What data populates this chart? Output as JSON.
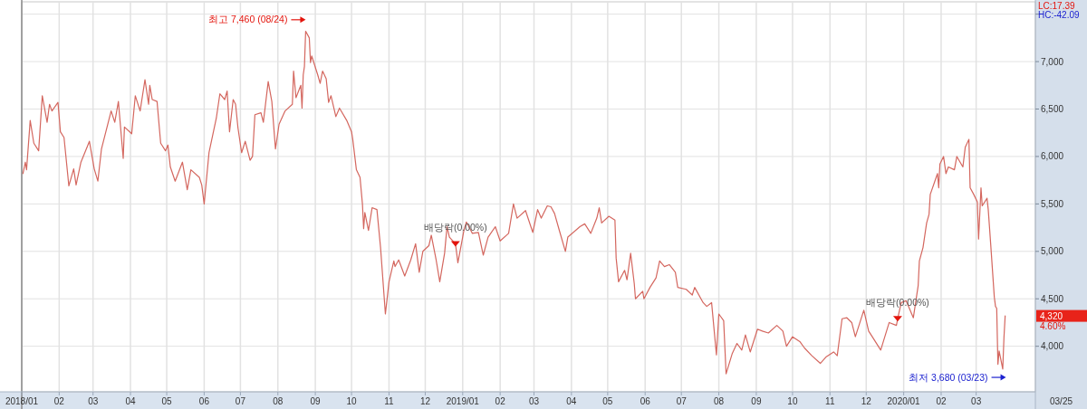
{
  "chart_data": {
    "type": "line",
    "x": [
      "2018-01-02",
      "2018-01-04",
      "2018-01-05",
      "2018-01-08",
      "2018-01-11",
      "2018-01-15",
      "2018-01-18",
      "2018-01-22",
      "2018-01-24",
      "2018-01-26",
      "2018-01-31",
      "2018-02-02",
      "2018-02-05",
      "2018-02-09",
      "2018-02-13",
      "2018-02-15",
      "2018-02-19",
      "2018-02-26",
      "2018-03-02",
      "2018-03-05",
      "2018-03-08",
      "2018-03-14",
      "2018-03-16",
      "2018-03-19",
      "2018-03-22",
      "2018-03-26",
      "2018-03-27",
      "2018-04-02",
      "2018-04-05",
      "2018-04-09",
      "2018-04-13",
      "2018-04-16",
      "2018-04-17",
      "2018-04-19",
      "2018-04-23",
      "2018-04-26",
      "2018-04-30",
      "2018-05-02",
      "2018-05-04",
      "2018-05-08",
      "2018-05-14",
      "2018-05-18",
      "2018-05-21",
      "2018-05-28",
      "2018-05-30",
      "2018-06-01",
      "2018-06-05",
      "2018-06-11",
      "2018-06-14",
      "2018-06-18",
      "2018-06-20",
      "2018-06-22",
      "2018-06-25",
      "2018-06-27",
      "2018-06-29",
      "2018-07-02",
      "2018-07-05",
      "2018-07-09",
      "2018-07-11",
      "2018-07-13",
      "2018-07-18",
      "2018-07-20",
      "2018-07-24",
      "2018-07-27",
      "2018-07-30",
      "2018-08-02",
      "2018-08-07",
      "2018-08-13",
      "2018-08-14",
      "2018-08-16",
      "2018-08-20",
      "2018-08-21",
      "2018-08-22",
      "2018-08-23",
      "2018-08-24",
      "2018-08-27",
      "2018-08-28",
      "2018-08-29",
      "2018-09-03",
      "2018-09-05",
      "2018-09-07",
      "2018-09-10",
      "2018-09-12",
      "2018-09-14",
      "2018-09-18",
      "2018-09-21",
      "2018-09-27",
      "2018-10-01",
      "2018-10-02",
      "2018-10-05",
      "2018-10-08",
      "2018-10-10",
      "2018-10-11",
      "2018-10-12",
      "2018-10-15",
      "2018-10-18",
      "2018-10-22",
      "2018-10-25",
      "2018-10-29",
      "2018-11-01",
      "2018-11-05",
      "2018-11-06",
      "2018-11-09",
      "2018-11-14",
      "2018-11-19",
      "2018-11-23",
      "2018-11-26",
      "2018-11-29",
      "2018-12-04",
      "2018-12-06",
      "2018-12-10",
      "2018-12-13",
      "2018-12-17",
      "2018-12-19",
      "2018-12-21",
      "2018-12-26",
      "2018-12-28",
      "2019-01-02",
      "2019-01-04",
      "2019-01-09",
      "2019-01-14",
      "2019-01-18",
      "2019-01-22",
      "2019-01-28",
      "2019-02-01",
      "2019-02-08",
      "2019-02-12",
      "2019-02-15",
      "2019-02-22",
      "2019-02-28",
      "2019-03-04",
      "2019-03-07",
      "2019-03-12",
      "2019-03-15",
      "2019-03-18",
      "2019-03-22",
      "2019-03-27",
      "2019-03-29",
      "2019-04-08",
      "2019-04-12",
      "2019-04-17",
      "2019-04-22",
      "2019-04-24",
      "2019-04-26",
      "2019-05-02",
      "2019-05-07",
      "2019-05-08",
      "2019-05-10",
      "2019-05-15",
      "2019-05-17",
      "2019-05-20",
      "2019-05-23",
      "2019-05-24",
      "2019-05-30",
      "2019-05-31",
      "2019-06-05",
      "2019-06-10",
      "2019-06-13",
      "2019-06-17",
      "2019-06-21",
      "2019-06-26",
      "2019-06-28",
      "2019-07-05",
      "2019-07-10",
      "2019-07-12",
      "2019-07-19",
      "2019-07-22",
      "2019-07-26",
      "2019-07-30",
      "2019-08-01",
      "2019-08-05",
      "2019-08-07",
      "2019-08-12",
      "2019-08-16",
      "2019-08-20",
      "2019-08-23",
      "2019-08-27",
      "2019-09-02",
      "2019-09-06",
      "2019-09-11",
      "2019-09-18",
      "2019-09-23",
      "2019-09-26",
      "2019-10-01",
      "2019-10-07",
      "2019-10-11",
      "2019-10-17",
      "2019-10-24",
      "2019-10-29",
      "2019-11-04",
      "2019-11-07",
      "2019-11-11",
      "2019-11-15",
      "2019-11-19",
      "2019-11-22",
      "2019-11-29",
      "2019-12-03",
      "2019-12-06",
      "2019-12-13",
      "2019-12-20",
      "2019-12-26",
      "2019-12-27",
      "2019-12-30",
      "2020-01-03",
      "2020-01-09",
      "2020-01-13",
      "2020-01-14",
      "2020-01-17",
      "2020-01-20",
      "2020-01-22",
      "2020-01-23",
      "2020-01-29",
      "2020-01-30",
      "2020-01-31",
      "2020-02-03",
      "2020-02-05",
      "2020-02-07",
      "2020-02-12",
      "2020-02-14",
      "2020-02-19",
      "2020-02-21",
      "2020-02-24",
      "2020-02-25",
      "2020-02-28",
      "2020-03-02",
      "2020-03-03",
      "2020-03-05",
      "2020-03-06",
      "2020-03-10",
      "2020-03-11",
      "2020-03-13",
      "2020-03-16",
      "2020-03-17",
      "2020-03-18",
      "2020-03-19",
      "2020-03-20",
      "2020-03-23",
      "2020-03-24",
      "2020-03-25"
    ],
    "series": [
      {
        "color": "#d4675f",
        "values": [
          5820,
          5940,
          5860,
          6380,
          6140,
          6060,
          6640,
          6360,
          6550,
          6480,
          6570,
          6260,
          6200,
          5690,
          5870,
          5700,
          5940,
          6160,
          5870,
          5740,
          6080,
          6380,
          6480,
          6360,
          6580,
          5980,
          6310,
          6240,
          6640,
          6480,
          6810,
          6550,
          6750,
          6600,
          6580,
          6140,
          6060,
          6120,
          5890,
          5740,
          5940,
          5650,
          5860,
          5780,
          5700,
          5500,
          6040,
          6400,
          6660,
          6600,
          6690,
          6260,
          6600,
          6550,
          6300,
          6040,
          6160,
          5960,
          6000,
          6440,
          6460,
          6360,
          6790,
          6580,
          6080,
          6340,
          6480,
          6550,
          6900,
          6620,
          6750,
          6510,
          6860,
          6950,
          7320,
          7250,
          6990,
          7060,
          6860,
          6770,
          6900,
          6820,
          6570,
          6640,
          6420,
          6510,
          6380,
          6260,
          6180,
          5860,
          5780,
          5500,
          5240,
          5410,
          5220,
          5460,
          5440,
          5040,
          4340,
          4680,
          4900,
          4840,
          4910,
          4740,
          4910,
          5080,
          4780,
          5000,
          5060,
          5170,
          4910,
          4680,
          4980,
          5260,
          5150,
          5080,
          4880,
          5220,
          5310,
          5190,
          5200,
          4960,
          5150,
          5260,
          5110,
          5190,
          5500,
          5350,
          5430,
          5200,
          5440,
          5350,
          5480,
          5470,
          5400,
          5220,
          5000,
          5150,
          5260,
          5290,
          5190,
          5350,
          5460,
          5300,
          5370,
          5330,
          4930,
          4680,
          4800,
          4700,
          4980,
          4660,
          4500,
          4580,
          4500,
          4620,
          4720,
          4900,
          4840,
          4860,
          4780,
          4620,
          4600,
          4540,
          4620,
          4460,
          4420,
          4460,
          3910,
          4340,
          4270,
          3710,
          3920,
          4030,
          3960,
          4120,
          3940,
          4180,
          4160,
          4140,
          4220,
          4160,
          4000,
          4100,
          4050,
          3980,
          3900,
          3820,
          3890,
          3940,
          3900,
          4290,
          4300,
          4250,
          4100,
          4380,
          4160,
          4100,
          3960,
          4250,
          4220,
          4290,
          4460,
          4480,
          4300,
          4640,
          4900,
          5040,
          5300,
          5390,
          5600,
          5820,
          5670,
          5920,
          6000,
          5820,
          5890,
          5860,
          6000,
          5890,
          6100,
          6180,
          5670,
          5600,
          5520,
          5130,
          5670,
          5480,
          5560,
          5440,
          5080,
          4520,
          4420,
          4400,
          3810,
          3950,
          3760,
          4090,
          4320
        ]
      }
    ],
    "xlim": [
      "2018-01-01",
      "2020-04-19"
    ],
    "xticks": [
      {
        "value": "2018-01",
        "label": "2018/01"
      },
      {
        "value": "2018-02",
        "label": "02"
      },
      {
        "value": "2018-03",
        "label": "03"
      },
      {
        "value": "2018-04",
        "label": "04"
      },
      {
        "value": "2018-05",
        "label": "05"
      },
      {
        "value": "2018-06",
        "label": "06"
      },
      {
        "value": "2018-07",
        "label": "07"
      },
      {
        "value": "2018-08",
        "label": "08"
      },
      {
        "value": "2018-09",
        "label": "09"
      },
      {
        "value": "2018-10",
        "label": "10"
      },
      {
        "value": "2018-11",
        "label": "11"
      },
      {
        "value": "2018-12",
        "label": "12"
      },
      {
        "value": "2019-01",
        "label": "2019/01"
      },
      {
        "value": "2019-02",
        "label": "02"
      },
      {
        "value": "2019-03",
        "label": "03"
      },
      {
        "value": "2019-04",
        "label": "04"
      },
      {
        "value": "2019-05",
        "label": "05"
      },
      {
        "value": "2019-06",
        "label": "06"
      },
      {
        "value": "2019-07",
        "label": "07"
      },
      {
        "value": "2019-08",
        "label": "08"
      },
      {
        "value": "2019-09",
        "label": "09"
      },
      {
        "value": "2019-10",
        "label": "10"
      },
      {
        "value": "2019-11",
        "label": "11"
      },
      {
        "value": "2019-12",
        "label": "12"
      },
      {
        "value": "2020-01",
        "label": "2020/01"
      },
      {
        "value": "2020-02",
        "label": "02"
      },
      {
        "value": "2020-03",
        "label": "03"
      }
    ],
    "ylim": [
      3520,
      7630
    ],
    "yticks": [
      {
        "value": 4000,
        "label": "4,000"
      },
      {
        "value": 4500,
        "label": "4,500"
      },
      {
        "value": 5000,
        "label": "5,000"
      },
      {
        "value": 5500,
        "label": "5,500"
      },
      {
        "value": 6000,
        "label": "6,000"
      },
      {
        "value": 6500,
        "label": "6,500"
      },
      {
        "value": 7000,
        "label": "7,000"
      },
      {
        "value": 7500,
        "label": null
      }
    ],
    "grid": true,
    "annotations": [
      "최고 7,460 (08/24)",
      "최저 3,680 (03/23)",
      "LC:17.39",
      "HC:-42.09",
      "4,320",
      "4.60%",
      "03/25",
      {
        "text": "배당락(0.00%)",
        "x": "2018-12-26",
        "y": 5080
      },
      {
        "text": "배당락(0.00%)",
        "x": "2019-12-27",
        "y": 4290
      }
    ]
  }
}
